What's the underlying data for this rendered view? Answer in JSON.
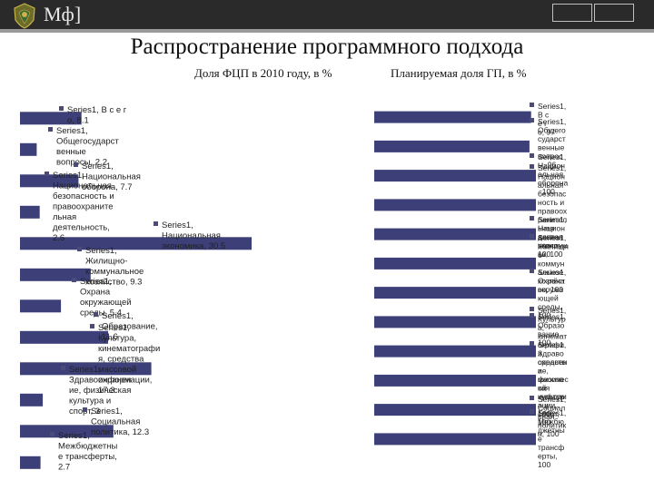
{
  "slide": {
    "logo_text": "Мф]",
    "title": "Распространение программного подхода",
    "subtitle_left": "Доля ФЦП в 2010 году, в %",
    "subtitle_right": "Планируемая доля ГП, в %"
  },
  "colors": {
    "bar": "#3c3f78",
    "topbar": "#2a2a2a",
    "stripe": "#9a9a9a"
  },
  "chart_data": [
    {
      "type": "bar",
      "orientation": "horizontal",
      "title": "Доля ФЦП в 2010 году, в %",
      "categories": [
        "Всего",
        "Общегосударственные вопросы",
        "Национальная оборона",
        "Национальная безопасность и правоохранительная деятельность",
        "Национальная экономика",
        "Жилищно-коммунальное хозяйство",
        "Охрана окружающей среды",
        "Образование",
        "Культура, кинематография, средства массовой информации",
        "Здравоохранение, физическая культура и спорт",
        "Социальная политика",
        "Межбюджетные трансферты"
      ],
      "series": [
        {
          "name": "Series1",
          "values": [
            8.1,
            2.2,
            7.7,
            2.6,
            30.5,
            9.3,
            5.4,
            11.6,
            17.3,
            3,
            12.3,
            2.7
          ]
        }
      ],
      "labels": [
        [
          "Series1, В с е г",
          "о, 8.1"
        ],
        [
          "Series1,",
          "Общегосударст",
          "венные",
          "вопросы, 2.2"
        ],
        [
          "Series1,",
          "Национальная",
          "оборона, 7.7"
        ],
        [
          "Series1,",
          "Национальная",
          "безопасность и",
          "правоохраните",
          "льная",
          "деятельность,",
          "2.6"
        ],
        [
          "Series1,",
          "Национальная",
          "экономика, 30.5"
        ],
        [
          "Series1,",
          "Жилищно-",
          "коммунальное",
          "хозяйство, 9.3"
        ],
        [
          "Series1,",
          "Охрана",
          "окружающей",
          "среды, 5.4"
        ],
        [
          "Series1,",
          "Образование,",
          "11.6"
        ],
        [
          "Series1,",
          "Культура,",
          "кинематографи",
          "я, средства",
          "массовой",
          "информации,",
          "17.3"
        ],
        [
          "Series1,",
          "Здравоохранен",
          "ие, физическая",
          "культура и",
          "спорт, 3"
        ],
        [
          "Series1,",
          "Социальная",
          "политика, 12.3"
        ],
        [
          "Series1,",
          "Межбюджетны",
          "е трансферты,",
          "2.7"
        ]
      ],
      "legend": false,
      "gridlines": false
    },
    {
      "type": "bar",
      "orientation": "horizontal",
      "title": "Планируемая доля ГП, в %",
      "categories": [
        "Всего",
        "Общегосударственные вопросы",
        "Национальная оборона",
        "Национальная безопасность и правоохранительная деятельность",
        "Национальная экономика",
        "Жилищно-коммунальное хозяйство",
        "Охрана окружающей среды",
        "Образование",
        "Культура, кинематография, средства массовой информации",
        "Здравоохранение, физическая культура и спорт",
        "Социальная политика",
        "Межбюджетные трансферты"
      ],
      "series": [
        {
          "name": "Series1",
          "values": [
            97,
            96,
            100,
            100,
            100,
            100,
            100,
            100,
            100,
            100,
            100,
            100
          ]
        }
      ],
      "labels": [
        [
          "Series1,",
          "В с",
          "е г",
          "о, 97"
        ],
        [
          "Series1,",
          "Общего",
          "сударст",
          "венные",
          "вопрос",
          "ы, 96"
        ],
        [
          "Series1,",
          "Национ",
          "альная",
          "оборона",
          ", 100"
        ],
        [
          "Series1,",
          "Национ",
          "альная",
          "безопас",
          "ность и",
          "правоох",
          "ранител",
          "ьная",
          "деятел",
          "ьность,",
          "100"
        ],
        [
          "Series1,",
          "Национ",
          "альная",
          "экономи",
          "ка, 100"
        ],
        [
          "Series1,",
          "Жилищн",
          "о-",
          "коммун",
          "альное",
          "хозяйст",
          "во, 100"
        ],
        [
          "Series1,",
          "Охрана",
          "окружа",
          "ющей",
          "среды,",
          "100"
        ],
        [
          "Series1,",
          "Образо",
          "вание,",
          "100"
        ],
        [
          "Series1,",
          "Культур",
          "а,",
          "кинемат",
          "ографи",
          "я,",
          "средств",
          "а",
          "массов",
          "ой",
          "информ",
          "ации,",
          "100"
        ],
        [
          "Series1,",
          "Здраво",
          "охранен",
          "ие,",
          "физичес",
          "кая",
          "культур",
          "а и",
          "спорт,",
          "100"
        ],
        [
          "Series1,",
          "Социал",
          "ьная",
          "политик",
          "а, 100"
        ],
        [
          "Series1,",
          "Межбю",
          "джетны",
          "е",
          "трансф",
          "ерты,",
          "100"
        ]
      ],
      "legend": false,
      "gridlines": false
    }
  ]
}
